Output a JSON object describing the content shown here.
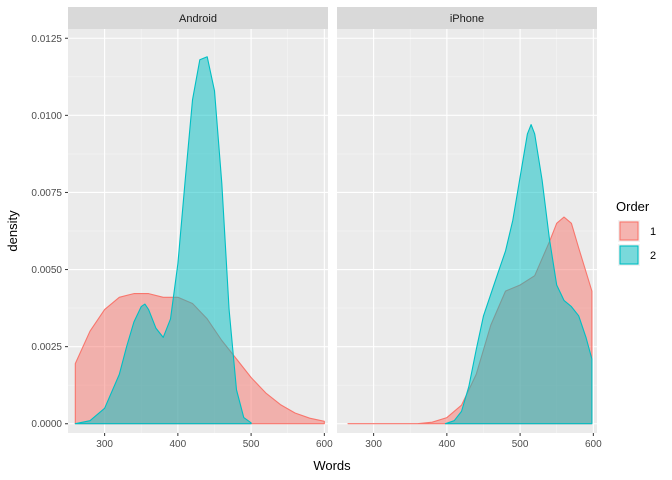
{
  "chart_data": {
    "type": "area",
    "subtype": "density",
    "xlabel": "Words",
    "ylabel": "density",
    "xlim": [
      250,
      605
    ],
    "ylim": [
      -0.0003,
      0.0128
    ],
    "x_ticks": [
      300,
      400,
      500,
      600
    ],
    "y_ticks": [
      0.0,
      0.0025,
      0.005,
      0.0075,
      0.01,
      0.0125
    ],
    "y_tick_labels": [
      "0.0000",
      "0.0025",
      "0.0050",
      "0.0075",
      "0.0100",
      "0.0125"
    ],
    "grid": true,
    "legend": {
      "title": "Order",
      "position": "right",
      "entries": [
        {
          "label": "1",
          "color": "#F8766D"
        },
        {
          "label": "2",
          "color": "#00BFC4"
        }
      ]
    },
    "colors": {
      "1": "#F8766D",
      "2": "#00BFC4"
    },
    "panels": [
      {
        "title": "Android",
        "series": [
          {
            "name": "1",
            "x": [
              260,
              280,
              300,
              320,
              340,
              360,
              380,
              400,
              420,
              440,
              460,
              480,
              500,
              520,
              540,
              560,
              580,
              600
            ],
            "y": [
              0.00195,
              0.003,
              0.0037,
              0.0041,
              0.00422,
              0.00422,
              0.0041,
              0.0041,
              0.0039,
              0.0034,
              0.0027,
              0.0021,
              0.0015,
              0.001,
              0.00062,
              0.00035,
              0.00018,
              8e-05
            ]
          },
          {
            "name": "2",
            "x": [
              260,
              280,
              300,
              320,
              330,
              340,
              350,
              355,
              360,
              370,
              380,
              390,
              400,
              410,
              420,
              430,
              440,
              450,
              460,
              470,
              480,
              490,
              500
            ],
            "y": [
              0.0,
              0.0001,
              0.0005,
              0.0016,
              0.0025,
              0.0033,
              0.0038,
              0.00388,
              0.0037,
              0.0031,
              0.0028,
              0.0034,
              0.0052,
              0.0079,
              0.0105,
              0.0118,
              0.0119,
              0.0108,
              0.0078,
              0.0037,
              0.0011,
              0.0002,
              3e-05
            ]
          }
        ]
      },
      {
        "title": "iPhone",
        "series": [
          {
            "name": "1",
            "x": [
              265,
              360,
              380,
              400,
              420,
              440,
              460,
              480,
              500,
              520,
              540,
              550,
              560,
              570,
              580,
              598
            ],
            "y": [
              0.0,
              0.0,
              5e-05,
              0.0002,
              0.0006,
              0.0016,
              0.0032,
              0.0043,
              0.0045,
              0.0048,
              0.0059,
              0.0065,
              0.0067,
              0.0065,
              0.0057,
              0.0043
            ]
          },
          {
            "name": "2",
            "x": [
              398,
              410,
              420,
              430,
              440,
              450,
              460,
              470,
              480,
              490,
              500,
              510,
              515,
              520,
              530,
              540,
              550,
              560,
              570,
              580,
              590,
              598
            ],
            "y": [
              0.0,
              0.0001,
              0.0004,
              0.0012,
              0.0024,
              0.0035,
              0.0042,
              0.0049,
              0.0056,
              0.0066,
              0.008,
              0.0094,
              0.0097,
              0.0094,
              0.0079,
              0.006,
              0.0045,
              0.004,
              0.0038,
              0.0035,
              0.0028,
              0.0021
            ]
          }
        ]
      }
    ]
  }
}
